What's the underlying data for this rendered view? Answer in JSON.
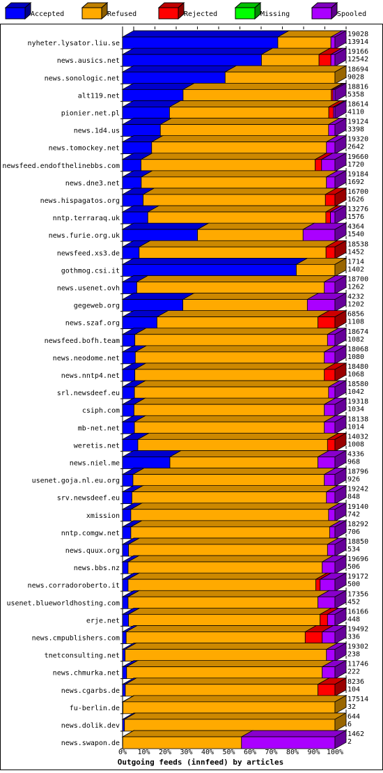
{
  "chart_data": {
    "type": "bar",
    "stacked": true,
    "orientation": "horizontal",
    "style": "3d",
    "xlabel": "Outgoing feeds (innfeed) by articles",
    "ylabel": "",
    "xlim": [
      0,
      100
    ],
    "x_unit": "%",
    "x_ticks": [
      "0%",
      "10%",
      "20%",
      "30%",
      "40%",
      "50%",
      "60%",
      "70%",
      "80%",
      "90%",
      "100%"
    ],
    "grid": "vertical dashed at each 10%",
    "legend_position": "top",
    "legend": [
      {
        "key": "accepted",
        "label": "Accepted",
        "color": "#0000ff"
      },
      {
        "key": "refused",
        "label": "Refused",
        "color": "#ffaa00"
      },
      {
        "key": "rejected",
        "label": "Rejected",
        "color": "#ff0000"
      },
      {
        "key": "missing",
        "label": "Missing",
        "color": "#00ff00"
      },
      {
        "key": "spooled",
        "label": "Spooled",
        "color": "#aa00ff"
      }
    ],
    "value_labels_note": "each row prints two numbers: offered total and accepted count",
    "rows": [
      {
        "name": "nyheter.lysator.liu.se",
        "total": "19028",
        "accepted_count": "13914",
        "pct": {
          "accepted": 73.1,
          "refused": 25.0,
          "rejected": 0.0,
          "missing": 0.0,
          "spooled": 1.9
        }
      },
      {
        "name": "news.ausics.net",
        "total": "19166",
        "accepted_count": "12542",
        "pct": {
          "accepted": 65.4,
          "refused": 27.1,
          "rejected": 5.6,
          "missing": 0.0,
          "spooled": 1.9
        }
      },
      {
        "name": "news.sonologic.net",
        "total": "18694",
        "accepted_count": "9028",
        "pct": {
          "accepted": 48.3,
          "refused": 51.7,
          "rejected": 0.0,
          "missing": 0.0,
          "spooled": 0.0
        }
      },
      {
        "name": "alt119.net",
        "total": "18816",
        "accepted_count": "5358",
        "pct": {
          "accepted": 28.5,
          "refused": 69.8,
          "rejected": 0.8,
          "missing": 0.0,
          "spooled": 0.9
        }
      },
      {
        "name": "pionier.net.pl",
        "total": "18614",
        "accepted_count": "4110",
        "pct": {
          "accepted": 22.1,
          "refused": 75.0,
          "rejected": 2.2,
          "missing": 0.0,
          "spooled": 0.7
        }
      },
      {
        "name": "news.1d4.us",
        "total": "19124",
        "accepted_count": "3398",
        "pct": {
          "accepted": 17.8,
          "refused": 79.2,
          "rejected": 0.0,
          "missing": 0.0,
          "spooled": 3.0
        }
      },
      {
        "name": "news.tomockey.net",
        "total": "19320",
        "accepted_count": "2642",
        "pct": {
          "accepted": 13.7,
          "refused": 82.3,
          "rejected": 0.0,
          "missing": 0.0,
          "spooled": 4.0
        }
      },
      {
        "name": "newsfeed.endofthelinebbs.com",
        "total": "19660",
        "accepted_count": "1720",
        "pct": {
          "accepted": 8.7,
          "refused": 82.0,
          "rejected": 3.0,
          "missing": 0.0,
          "spooled": 6.3
        }
      },
      {
        "name": "news.dne3.net",
        "total": "19184",
        "accepted_count": "1692",
        "pct": {
          "accepted": 8.8,
          "refused": 87.2,
          "rejected": 0.0,
          "missing": 0.0,
          "spooled": 4.0
        }
      },
      {
        "name": "news.hispagatos.org",
        "total": "16700",
        "accepted_count": "1626",
        "pct": {
          "accepted": 9.7,
          "refused": 85.8,
          "rejected": 4.5,
          "missing": 0.0,
          "spooled": 0.0
        }
      },
      {
        "name": "nntp.terraraq.uk",
        "total": "13276",
        "accepted_count": "1576",
        "pct": {
          "accepted": 11.9,
          "refused": 83.8,
          "rejected": 2.2,
          "missing": 0.0,
          "spooled": 2.1
        }
      },
      {
        "name": "news.furie.org.uk",
        "total": "4364",
        "accepted_count": "1540",
        "pct": {
          "accepted": 35.3,
          "refused": 49.7,
          "rejected": 0.0,
          "missing": 0.0,
          "spooled": 15.0
        }
      },
      {
        "name": "newsfeed.xs3.de",
        "total": "18538",
        "accepted_count": "1452",
        "pct": {
          "accepted": 7.8,
          "refused": 88.0,
          "rejected": 4.2,
          "missing": 0.0,
          "spooled": 0.0
        }
      },
      {
        "name": "gothmog.csi.it",
        "total": "1714",
        "accepted_count": "1402",
        "pct": {
          "accepted": 81.8,
          "refused": 18.2,
          "rejected": 0.0,
          "missing": 0.0,
          "spooled": 0.0
        }
      },
      {
        "name": "news.usenet.ovh",
        "total": "18700",
        "accepted_count": "1262",
        "pct": {
          "accepted": 6.7,
          "refused": 88.3,
          "rejected": 0.0,
          "missing": 0.0,
          "spooled": 5.0
        }
      },
      {
        "name": "gegeweb.org",
        "total": "4232",
        "accepted_count": "1202",
        "pct": {
          "accepted": 28.4,
          "refused": 58.6,
          "rejected": 0.0,
          "missing": 0.0,
          "spooled": 13.0
        }
      },
      {
        "name": "news.szaf.org",
        "total": "6856",
        "accepted_count": "1108",
        "pct": {
          "accepted": 16.2,
          "refused": 75.8,
          "rejected": 8.0,
          "missing": 0.0,
          "spooled": 0.0
        }
      },
      {
        "name": "newsfeed.bofh.team",
        "total": "18674",
        "accepted_count": "1082",
        "pct": {
          "accepted": 5.8,
          "refused": 90.7,
          "rejected": 0.0,
          "missing": 0.0,
          "spooled": 3.5
        }
      },
      {
        "name": "news.neodome.net",
        "total": "18068",
        "accepted_count": "1080",
        "pct": {
          "accepted": 6.0,
          "refused": 89.0,
          "rejected": 0.0,
          "missing": 0.0,
          "spooled": 5.0
        }
      },
      {
        "name": "news.nntp4.net",
        "total": "18480",
        "accepted_count": "1068",
        "pct": {
          "accepted": 5.8,
          "refused": 89.2,
          "rejected": 5.0,
          "missing": 0.0,
          "spooled": 0.0
        }
      },
      {
        "name": "srl.newsdeef.eu",
        "total": "18580",
        "accepted_count": "1042",
        "pct": {
          "accepted": 5.6,
          "refused": 91.4,
          "rejected": 0.0,
          "missing": 0.0,
          "spooled": 3.0
        }
      },
      {
        "name": "csiph.com",
        "total": "19318",
        "accepted_count": "1034",
        "pct": {
          "accepted": 5.4,
          "refused": 89.6,
          "rejected": 0.0,
          "missing": 0.0,
          "spooled": 5.0
        }
      },
      {
        "name": "mb-net.net",
        "total": "18138",
        "accepted_count": "1014",
        "pct": {
          "accepted": 5.6,
          "refused": 89.4,
          "rejected": 0.0,
          "missing": 0.0,
          "spooled": 5.0
        }
      },
      {
        "name": "weretis.net",
        "total": "14032",
        "accepted_count": "1008",
        "pct": {
          "accepted": 7.2,
          "refused": 89.3,
          "rejected": 3.5,
          "missing": 0.0,
          "spooled": 0.0
        }
      },
      {
        "name": "news.niel.me",
        "total": "4336",
        "accepted_count": "968",
        "pct": {
          "accepted": 22.3,
          "refused": 69.7,
          "rejected": 0.0,
          "missing": 0.0,
          "spooled": 8.0
        }
      },
      {
        "name": "usenet.goja.nl.eu.org",
        "total": "18796",
        "accepted_count": "926",
        "pct": {
          "accepted": 4.9,
          "refused": 90.1,
          "rejected": 0.0,
          "missing": 0.0,
          "spooled": 5.0
        }
      },
      {
        "name": "srv.newsdeef.eu",
        "total": "19242",
        "accepted_count": "848",
        "pct": {
          "accepted": 4.4,
          "refused": 91.6,
          "rejected": 0.0,
          "missing": 0.0,
          "spooled": 4.0
        }
      },
      {
        "name": "xmission",
        "total": "19140",
        "accepted_count": "742",
        "pct": {
          "accepted": 3.9,
          "refused": 93.1,
          "rejected": 0.0,
          "missing": 0.0,
          "spooled": 3.0
        }
      },
      {
        "name": "nntp.comgw.net",
        "total": "18292",
        "accepted_count": "706",
        "pct": {
          "accepted": 3.9,
          "refused": 93.6,
          "rejected": 0.0,
          "missing": 0.0,
          "spooled": 2.5
        }
      },
      {
        "name": "news.quux.org",
        "total": "18850",
        "accepted_count": "534",
        "pct": {
          "accepted": 2.8,
          "refused": 93.7,
          "rejected": 0.0,
          "missing": 0.0,
          "spooled": 3.5
        }
      },
      {
        "name": "news.bbs.nz",
        "total": "19696",
        "accepted_count": "506",
        "pct": {
          "accepted": 2.6,
          "refused": 91.4,
          "rejected": 0.0,
          "missing": 0.0,
          "spooled": 6.0
        }
      },
      {
        "name": "news.corradoroberto.it",
        "total": "19172",
        "accepted_count": "500",
        "pct": {
          "accepted": 2.6,
          "refused": 88.4,
          "rejected": 2.0,
          "missing": 0.0,
          "spooled": 7.0
        }
      },
      {
        "name": "usenet.blueworldhosting.com",
        "total": "17356",
        "accepted_count": "452",
        "pct": {
          "accepted": 2.6,
          "refused": 89.4,
          "rejected": 0.0,
          "missing": 0.0,
          "spooled": 8.0
        }
      },
      {
        "name": "erje.net",
        "total": "16166",
        "accepted_count": "448",
        "pct": {
          "accepted": 2.8,
          "refused": 90.2,
          "rejected": 3.5,
          "missing": 0.0,
          "spooled": 3.5
        }
      },
      {
        "name": "news.cmpublishers.com",
        "total": "19492",
        "accepted_count": "336",
        "pct": {
          "accepted": 1.7,
          "refused": 84.3,
          "rejected": 8.0,
          "missing": 0.0,
          "spooled": 6.0
        }
      },
      {
        "name": "tnetconsulting.net",
        "total": "19302",
        "accepted_count": "238",
        "pct": {
          "accepted": 1.2,
          "refused": 94.8,
          "rejected": 0.0,
          "missing": 0.0,
          "spooled": 4.0
        }
      },
      {
        "name": "news.chmurka.net",
        "total": "11746",
        "accepted_count": "222",
        "pct": {
          "accepted": 1.9,
          "refused": 92.1,
          "rejected": 0.0,
          "missing": 0.0,
          "spooled": 6.0
        }
      },
      {
        "name": "news.cgarbs.de",
        "total": "8236",
        "accepted_count": "104",
        "pct": {
          "accepted": 1.3,
          "refused": 90.7,
          "rejected": 8.0,
          "missing": 0.0,
          "spooled": 0.0
        }
      },
      {
        "name": "fu-berlin.de",
        "total": "17514",
        "accepted_count": "32",
        "pct": {
          "accepted": 0.2,
          "refused": 99.8,
          "rejected": 0.0,
          "missing": 0.0,
          "spooled": 0.0
        }
      },
      {
        "name": "news.dolik.dev",
        "total": "644",
        "accepted_count": "6",
        "pct": {
          "accepted": 0.9,
          "refused": 99.1,
          "rejected": 0.0,
          "missing": 0.0,
          "spooled": 0.0
        }
      },
      {
        "name": "news.swapon.de",
        "total": "1462",
        "accepted_count": "2",
        "pct": {
          "accepted": 0.1,
          "refused": 55.9,
          "rejected": 0.0,
          "missing": 0.0,
          "spooled": 44.0
        }
      }
    ]
  }
}
